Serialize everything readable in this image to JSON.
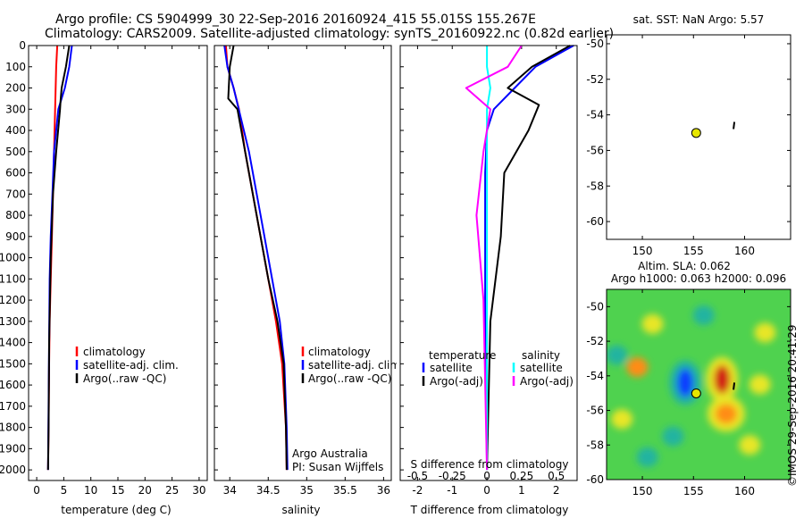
{
  "header": {
    "line1": "Argo profile: CS 5904999_30 22-Sep-2016 20160924_415 55.015S 155.267E",
    "line2": "Climatology: CARS2009. Satellite-adjusted climatology: synTS_20160922.nc (0.82d earlier)"
  },
  "colors": {
    "climatology": "#ff0000",
    "satellite": "#0000ff",
    "argo": "#000000",
    "sat_salinity": "#00ffff",
    "argo_salinity": "#ff00ff",
    "marker_fill": "#e6e600"
  },
  "credit": "©IMOS 29-Sep-2016 20:41:29",
  "chart_data": [
    {
      "type": "line",
      "id": "temperature",
      "xlabel": "temperature (deg C)",
      "ylabel": "",
      "xlim": [
        -1.5,
        31.5
      ],
      "ylim": [
        2050,
        0
      ],
      "xticks": [
        0,
        5,
        10,
        15,
        20,
        25,
        30
      ],
      "yticks": [
        0,
        100,
        200,
        300,
        400,
        500,
        600,
        700,
        800,
        900,
        1000,
        1100,
        1200,
        1300,
        1400,
        1500,
        1600,
        1700,
        1800,
        1900,
        2000
      ],
      "legend": [
        "climatology",
        "satellite-adj. clim.",
        "Argo(..raw -QC)"
      ],
      "legend_position": "bottom-center",
      "series": [
        {
          "name": "climatology",
          "color": "#ff0000",
          "x": [
            3.8,
            3.6,
            3.4,
            3.2,
            3.0,
            2.8,
            2.6,
            2.4,
            2.3,
            2.2,
            2.1
          ],
          "y": [
            0,
            100,
            300,
            500,
            700,
            900,
            1100,
            1300,
            1500,
            1800,
            2000
          ]
        },
        {
          "name": "satellite-adj. clim.",
          "color": "#0000ff",
          "x": [
            6.5,
            6.0,
            5.2,
            4.0,
            3.2,
            2.9,
            2.6,
            2.4,
            2.3,
            2.2,
            2.1
          ],
          "y": [
            0,
            100,
            200,
            300,
            500,
            700,
            900,
            1100,
            1400,
            1700,
            2000
          ]
        },
        {
          "name": "Argo(..raw -QC)",
          "color": "#000000",
          "x": [
            6.0,
            5.4,
            4.6,
            4.4,
            4.3,
            3.6,
            3.0,
            2.6,
            2.3,
            2.2,
            2.1
          ],
          "y": [
            0,
            100,
            200,
            260,
            300,
            500,
            700,
            1000,
            1400,
            1800,
            2000
          ]
        }
      ]
    },
    {
      "type": "line",
      "id": "salinity",
      "xlabel": "salinity",
      "xlim": [
        33.8,
        36.1
      ],
      "ylim": [
        2050,
        0
      ],
      "xticks": [
        34,
        34.5,
        35,
        35.5,
        36
      ],
      "legend": [
        "climatology",
        "satellite-adj. clim.",
        "Argo(..raw -QC)"
      ],
      "legend_position": "bottom-center",
      "annotation": [
        "Argo Australia",
        "PI: Susan Wijffels"
      ],
      "series": [
        {
          "name": "climatology",
          "color": "#ff0000",
          "x": [
            33.95,
            33.97,
            34.05,
            34.12,
            34.2,
            34.35,
            34.5,
            34.6,
            34.68,
            34.73,
            34.74
          ],
          "y": [
            0,
            100,
            200,
            300,
            500,
            800,
            1100,
            1300,
            1500,
            1800,
            2000
          ]
        },
        {
          "name": "satellite-adj. clim.",
          "color": "#0000ff",
          "x": [
            33.93,
            33.97,
            34.05,
            34.15,
            34.25,
            34.4,
            34.55,
            34.65,
            34.71,
            34.74,
            34.75
          ],
          "y": [
            0,
            100,
            200,
            350,
            500,
            800,
            1100,
            1300,
            1500,
            1800,
            2000
          ]
        },
        {
          "name": "Argo(..raw -QC)",
          "color": "#000000",
          "x": [
            34.05,
            34.0,
            33.98,
            34.1,
            34.2,
            34.35,
            34.5,
            34.62,
            34.7,
            34.73,
            34.74
          ],
          "y": [
            0,
            100,
            250,
            300,
            500,
            800,
            1100,
            1300,
            1500,
            1800,
            2000
          ]
        }
      ]
    },
    {
      "type": "line",
      "id": "difference",
      "xlabel_bottom": "T difference from climatology",
      "xlabel_top": "S difference from climatology",
      "xlim": [
        -2.5,
        2.6
      ],
      "ylim": [
        2050,
        0
      ],
      "xticks": [
        -2,
        -1,
        0,
        1,
        2
      ],
      "xticks_s": [
        -0.5,
        -0.25,
        0,
        0.25,
        0.5
      ],
      "legend_t_title": "temperature",
      "legend_s_title": "salinity",
      "legend_t": [
        "satellite",
        "Argo(-adj)"
      ],
      "legend_s": [
        "satellite",
        "Argo(-adj)"
      ],
      "legend_position": "bottom-center",
      "series": [
        {
          "name": "satellite",
          "color": "#0000ff",
          "group": "temperature",
          "x": [
            2.5,
            1.4,
            0.8,
            0.2,
            0.0,
            -0.05,
            -0.05,
            0.0
          ],
          "y": [
            0,
            100,
            200,
            300,
            400,
            600,
            1200,
            2000
          ]
        },
        {
          "name": "Argo(-adj)",
          "color": "#000000",
          "group": "temperature",
          "x": [
            2.4,
            1.3,
            0.6,
            1.5,
            1.2,
            0.5,
            0.4,
            0.1,
            0.0
          ],
          "y": [
            0,
            100,
            200,
            280,
            400,
            600,
            900,
            1300,
            2000
          ]
        },
        {
          "name": "satellite",
          "color": "#00ffff",
          "group": "salinity",
          "x": [
            0.0,
            0.0,
            0.1,
            0.0,
            0.0,
            0.0,
            0.0
          ],
          "y": [
            0,
            100,
            200,
            300,
            500,
            1000,
            2000
          ]
        },
        {
          "name": "Argo(-adj)",
          "color": "#ff00ff",
          "group": "salinity",
          "x": [
            1.0,
            0.6,
            -0.6,
            0.1,
            -0.1,
            -0.3,
            -0.1,
            0.0
          ],
          "y": [
            0,
            100,
            200,
            300,
            500,
            800,
            1200,
            2000
          ]
        }
      ]
    },
    {
      "type": "scatter",
      "id": "sst-map",
      "title": "sat. SST: NaN Argo: 5.57",
      "xlim": [
        146.5,
        164.5
      ],
      "ylim": [
        -61,
        -49.5
      ],
      "xticks": [
        150,
        155,
        160
      ],
      "yticks": [
        -50,
        -52,
        -54,
        -56,
        -58,
        -60
      ],
      "points": [
        {
          "x": 155.267,
          "y": -55.015
        }
      ],
      "secondary_points": [
        {
          "x": 159.0,
          "y": -54.6
        }
      ]
    },
    {
      "type": "heatmap",
      "id": "sla-map",
      "title_lines": [
        "Altim. SLA: 0.062",
        "Argo h1000: 0.063 h2000: 0.096"
      ],
      "xlim": [
        146.5,
        164.5
      ],
      "ylim": [
        -60,
        -49
      ],
      "xticks": [
        150,
        155,
        160
      ],
      "yticks": [
        -50,
        -52,
        -54,
        -56,
        -58,
        -60
      ],
      "points": [
        {
          "x": 155.267,
          "y": -55.015
        }
      ],
      "secondary_points": [
        {
          "x": 159.0,
          "y": -54.6
        }
      ],
      "anomalies": [
        {
          "x": 154.2,
          "y": -54.4,
          "v": -1.0
        },
        {
          "x": 157.8,
          "y": -54.2,
          "v": 0.9
        },
        {
          "x": 158.2,
          "y": -56.2,
          "v": 0.7
        },
        {
          "x": 149.5,
          "y": -53.5,
          "v": 0.6
        },
        {
          "x": 151.0,
          "y": -51.0,
          "v": 0.5
        },
        {
          "x": 161.5,
          "y": -54.5,
          "v": 0.5
        },
        {
          "x": 153.0,
          "y": -57.5,
          "v": -0.4
        },
        {
          "x": 162.0,
          "y": -51.5,
          "v": 0.3
        },
        {
          "x": 156.0,
          "y": -50.5,
          "v": -0.3
        },
        {
          "x": 148.0,
          "y": -56.5,
          "v": 0.4
        },
        {
          "x": 150.5,
          "y": -58.7,
          "v": -0.3
        },
        {
          "x": 160.5,
          "y": -58.0,
          "v": 0.3
        },
        {
          "x": 147.5,
          "y": -52.8,
          "v": -0.3
        }
      ]
    }
  ]
}
